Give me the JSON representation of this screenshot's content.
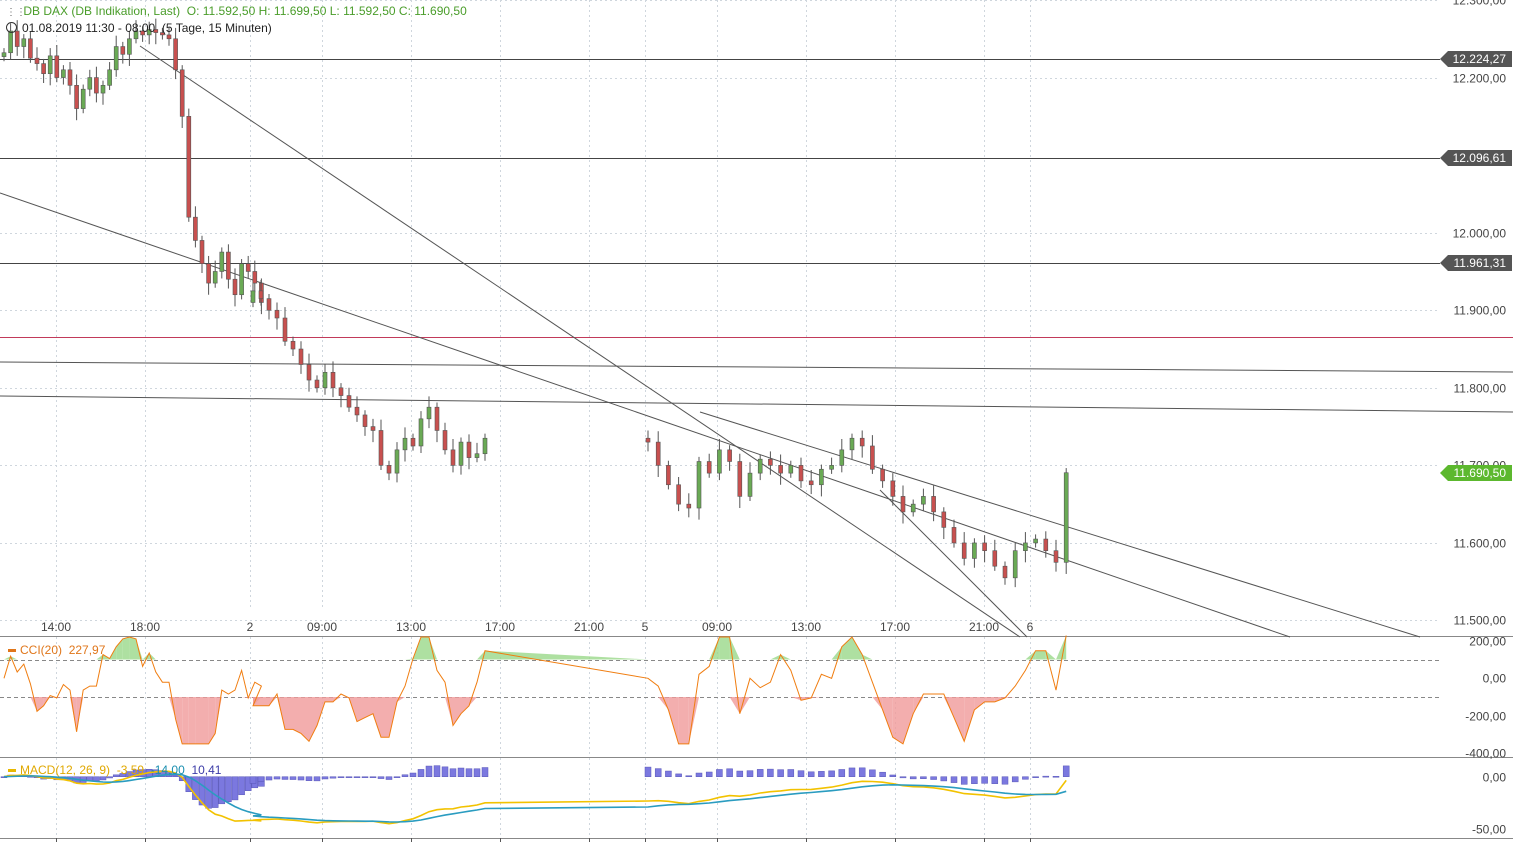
{
  "header": {
    "title": "DB DAX (DB Indikation, Last)",
    "ohlc": "O: 11.592,50  H: 11.699,50  L: 11.592,50  C: 11.690,50",
    "period": "01.08.2019 11:30 - 08:00",
    "interval": "(5 Tage, 15 Minuten)"
  },
  "price_levels": [
    {
      "label": "12.224,27",
      "value": 12224.27,
      "color": "#555555"
    },
    {
      "label": "12.096,61",
      "value": 12096.61,
      "color": "#555555"
    },
    {
      "label": "11.961,31",
      "value": 11961.31,
      "color": "#555555"
    },
    {
      "label": "11.690,50",
      "value": 11690.5,
      "color": "#5cb82e"
    }
  ],
  "red_level": 11866,
  "cci_label": {
    "name": "CCI(20)",
    "value": "227,97"
  },
  "macd_label": {
    "name": "MACD(12, 26, 9)",
    "v1": "-3,59",
    "v2": "-14,00",
    "v3": "10,41"
  },
  "colors": {
    "up": "#6aaa55",
    "down": "#c8504f",
    "cci": "#f07d10",
    "macd": "#f2c200",
    "signal": "#2a9cc0",
    "hist": "#7b78df",
    "accent": "#5cb82e"
  },
  "chart_data": {
    "type": "candlestick",
    "instrument": "DB DAX",
    "interval_minutes": 15,
    "price_axis": {
      "range": [
        11480,
        12300
      ],
      "ticks": [
        "12.300,00",
        "12.200,00",
        "12.000,00",
        "11.900,00",
        "11.800,00",
        "11.700,00",
        "11.600,00",
        "11.500,00"
      ],
      "tick_values": [
        12300,
        12200,
        12000,
        11900,
        11800,
        11700,
        11600,
        11500
      ]
    },
    "time_axis": {
      "labels": [
        "14:00",
        "18:00",
        "2",
        "09:00",
        "13:00",
        "17:00",
        "21:00",
        "5",
        "09:00",
        "13:00",
        "17:00",
        "21:00",
        "6"
      ]
    },
    "candles": {
      "close": [
        12232,
        12260,
        12240,
        12250,
        12225,
        12218,
        12205,
        12228,
        12200,
        12210,
        12190,
        12160,
        12185,
        12200,
        12180,
        12190,
        12210,
        12240,
        12230,
        12250,
        12260,
        12255,
        12262,
        12258,
        12255,
        12250,
        12210,
        12150,
        12020,
        11990,
        11960,
        11935,
        11950,
        11975,
        11940,
        11920,
        11960,
        11950,
        11935,
        11910,
        11925,
        11915,
        11900,
        11890,
        11860,
        11850,
        11830,
        11810,
        11800,
        11820,
        11800,
        11790,
        11775,
        11765,
        11750,
        11745,
        11700,
        11690,
        11720,
        11735,
        11725,
        11760,
        11775,
        11745,
        11720,
        11700,
        11730,
        11710,
        11715,
        11735,
        11730,
        11700,
        11675,
        11650,
        11645,
        11705,
        11690,
        11720,
        11705,
        11660,
        11690,
        11708,
        11700,
        11690,
        11700,
        11680,
        11675,
        11695,
        11700,
        11720,
        11735,
        11725,
        11695,
        11680,
        11660,
        11640,
        11650,
        11660,
        11640,
        11620,
        11600,
        11580,
        11600,
        11590,
        11570,
        11555,
        11590,
        11600,
        11605,
        11590,
        11575,
        11690.5
      ],
      "range": [
        [
          12220,
          12262
        ],
        [
          12225,
          12270
        ],
        [
          12230,
          12268
        ]
      ]
    },
    "cci": {
      "name": "CCI(20)",
      "last": 227.97,
      "range": [
        -420,
        220
      ],
      "ticks": [
        "200,00",
        "0,00",
        "-200,00",
        "-400,00"
      ],
      "tick_values": [
        200,
        0,
        -200,
        -400
      ],
      "bands": [
        100,
        -100
      ]
    },
    "macd": {
      "name": "MACD(12, 26, 9)",
      "macd": -3.59,
      "signal": -14.0,
      "histogram": 10.41,
      "range": [
        -58,
        18
      ],
      "ticks": [
        "0,00",
        "-50,00"
      ],
      "tick_values": [
        0,
        -50
      ]
    }
  }
}
